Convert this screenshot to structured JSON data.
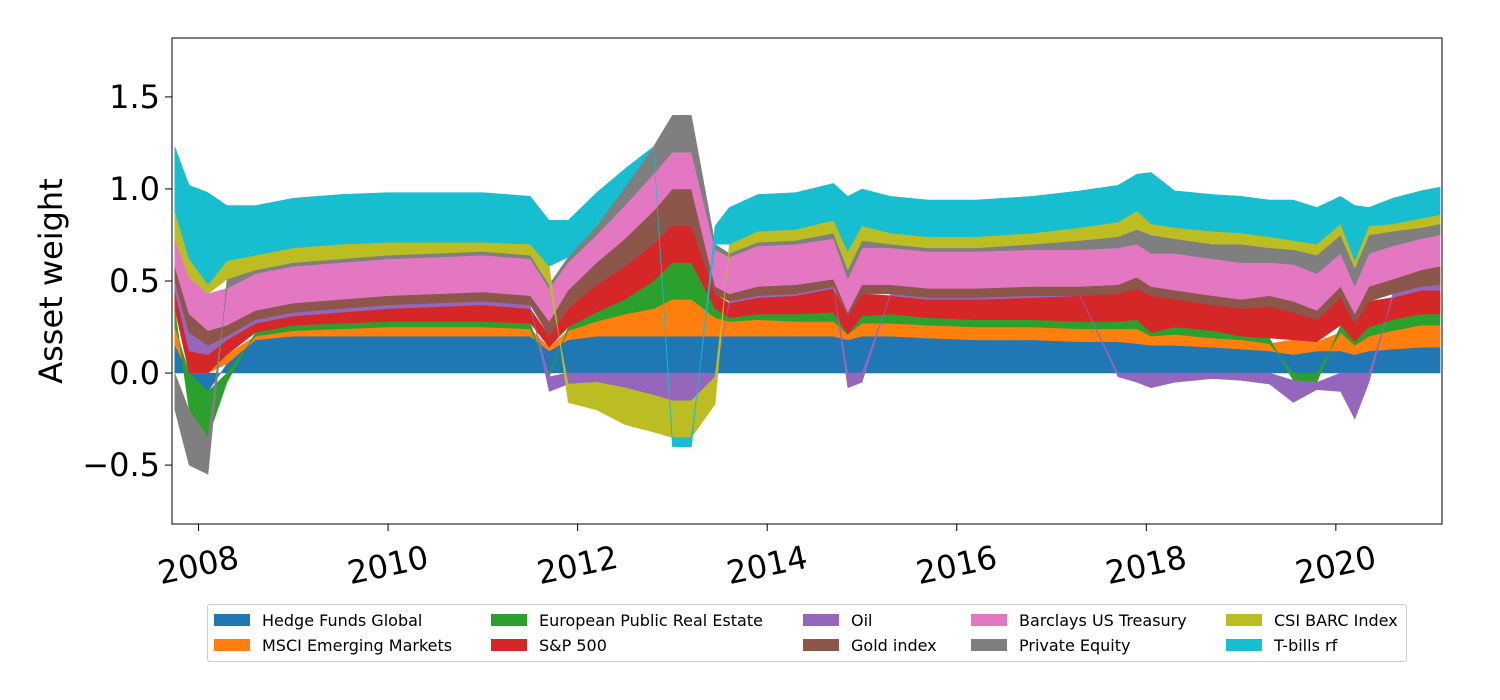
{
  "chart_data": {
    "type": "area",
    "stacked": true,
    "title": "",
    "xlabel": "",
    "ylabel": "Asset weight",
    "xlim": [
      2007.72,
      2021.12
    ],
    "ylim": [
      -0.82,
      1.82
    ],
    "xticks": [
      2008,
      2010,
      2012,
      2014,
      2016,
      2018,
      2020
    ],
    "xtick_labels": [
      "2008",
      "2010",
      "2012",
      "2014",
      "2016",
      "2018",
      "2020"
    ],
    "yticks": [
      -0.5,
      0.0,
      0.5,
      1.0,
      1.5
    ],
    "ytick_labels": [
      "−0.5",
      "0.0",
      "0.5",
      "1.0",
      "1.5"
    ],
    "grid": false,
    "legend_position": "bottom-center",
    "x": [
      2007.75,
      2007.9,
      2008.1,
      2008.3,
      2008.6,
      2009.0,
      2009.5,
      2010.0,
      2010.5,
      2011.0,
      2011.5,
      2011.7,
      2011.9,
      2012.2,
      2012.5,
      2012.8,
      2013.0,
      2013.2,
      2013.45,
      2013.6,
      2013.9,
      2014.3,
      2014.7,
      2014.85,
      2015.0,
      2015.3,
      2015.7,
      2016.2,
      2016.8,
      2017.3,
      2017.7,
      2017.9,
      2018.05,
      2018.3,
      2018.7,
      2019.0,
      2019.3,
      2019.55,
      2019.8,
      2020.05,
      2020.2,
      2020.35,
      2020.6,
      2020.9,
      2021.1
    ],
    "series": [
      {
        "name": "Hedge Funds Global",
        "color": "#1f77b4",
        "values": [
          0.15,
          0.0,
          -0.1,
          0.05,
          0.18,
          0.2,
          0.2,
          0.2,
          0.2,
          0.2,
          0.2,
          0.12,
          0.18,
          0.2,
          0.2,
          0.2,
          0.2,
          0.2,
          0.2,
          0.2,
          0.2,
          0.2,
          0.2,
          0.18,
          0.2,
          0.2,
          0.19,
          0.18,
          0.18,
          0.17,
          0.17,
          0.16,
          0.15,
          0.15,
          0.14,
          0.13,
          0.12,
          0.1,
          0.12,
          0.12,
          0.1,
          0.12,
          0.13,
          0.14,
          0.14
        ]
      },
      {
        "name": "MSCI Emerging Markets",
        "color": "#ff7f0e",
        "values": [
          0.1,
          0.0,
          0.0,
          0.05,
          0.02,
          0.03,
          0.04,
          0.05,
          0.05,
          0.05,
          0.04,
          0.02,
          0.05,
          0.08,
          0.12,
          0.15,
          0.2,
          0.2,
          0.1,
          0.08,
          0.09,
          0.08,
          0.08,
          0.03,
          0.07,
          0.07,
          0.07,
          0.07,
          0.07,
          0.07,
          0.07,
          0.08,
          0.05,
          0.06,
          0.05,
          0.05,
          0.04,
          0.08,
          0.05,
          0.1,
          0.05,
          0.08,
          0.1,
          0.12,
          0.12
        ]
      },
      {
        "name": "European Public Real Estate",
        "color": "#2ca02c",
        "values": [
          0.1,
          -0.2,
          -0.25,
          -0.05,
          0.02,
          0.03,
          0.03,
          0.03,
          0.03,
          0.03,
          0.03,
          -0.02,
          0.02,
          0.05,
          0.08,
          0.15,
          0.2,
          0.2,
          0.05,
          0.02,
          0.03,
          0.04,
          0.05,
          0.0,
          0.04,
          0.05,
          0.04,
          0.04,
          0.04,
          0.04,
          0.04,
          0.05,
          0.02,
          0.04,
          0.04,
          0.02,
          0.03,
          -0.04,
          -0.05,
          0.04,
          0.02,
          0.05,
          0.06,
          0.06,
          0.06
        ]
      },
      {
        "name": "S&P 500",
        "color": "#d62728",
        "values": [
          0.1,
          0.12,
          0.1,
          0.08,
          0.05,
          0.05,
          0.06,
          0.07,
          0.08,
          0.09,
          0.08,
          0.06,
          0.1,
          0.15,
          0.18,
          0.2,
          0.2,
          0.2,
          0.08,
          0.08,
          0.09,
          0.1,
          0.13,
          0.1,
          0.12,
          0.1,
          0.1,
          0.11,
          0.12,
          0.14,
          0.15,
          0.17,
          0.2,
          0.15,
          0.14,
          0.15,
          0.17,
          0.15,
          0.12,
          0.15,
          0.1,
          0.14,
          0.12,
          0.13,
          0.13
        ]
      },
      {
        "name": "Oil",
        "color": "#9467bd",
        "values": [
          0.05,
          0.1,
          0.05,
          0.02,
          0.02,
          0.02,
          0.02,
          0.02,
          0.02,
          0.02,
          0.02,
          -0.08,
          -0.06,
          -0.05,
          -0.08,
          -0.12,
          -0.15,
          -0.15,
          -0.02,
          0.01,
          0.01,
          0.01,
          0.01,
          -0.08,
          -0.05,
          0.01,
          0.01,
          0.01,
          0.01,
          0.0,
          -0.02,
          -0.05,
          -0.08,
          -0.05,
          -0.03,
          -0.04,
          -0.06,
          -0.12,
          -0.04,
          -0.1,
          -0.25,
          -0.05,
          0.02,
          0.02,
          0.03
        ]
      },
      {
        "name": "Gold index",
        "color": "#8c564b",
        "values": [
          0.08,
          0.1,
          0.08,
          0.06,
          0.05,
          0.05,
          0.05,
          0.05,
          0.05,
          0.05,
          0.05,
          0.08,
          0.1,
          0.12,
          0.15,
          0.18,
          0.2,
          0.2,
          0.04,
          0.04,
          0.05,
          0.05,
          0.04,
          0.02,
          0.05,
          0.05,
          0.05,
          0.05,
          0.05,
          0.05,
          0.05,
          0.06,
          0.05,
          0.05,
          0.05,
          0.05,
          0.06,
          0.06,
          0.05,
          0.06,
          0.05,
          0.08,
          0.08,
          0.09,
          0.1
        ]
      },
      {
        "name": "Barclays US Treasury",
        "color": "#e377c2",
        "values": [
          0.15,
          0.2,
          0.2,
          0.2,
          0.2,
          0.2,
          0.2,
          0.2,
          0.2,
          0.2,
          0.2,
          0.18,
          0.15,
          0.15,
          0.18,
          0.2,
          0.2,
          0.2,
          0.2,
          0.2,
          0.22,
          0.22,
          0.22,
          0.18,
          0.2,
          0.2,
          0.2,
          0.2,
          0.2,
          0.2,
          0.2,
          0.18,
          0.18,
          0.2,
          0.2,
          0.2,
          0.18,
          0.2,
          0.2,
          0.18,
          0.15,
          0.18,
          0.18,
          0.17,
          0.17
        ]
      },
      {
        "name": "Private Equity",
        "color": "#7f7f7f",
        "values": [
          -0.2,
          -0.3,
          -0.2,
          0.05,
          0.02,
          0.02,
          0.02,
          0.02,
          0.02,
          0.02,
          0.02,
          0.02,
          0.03,
          0.05,
          0.1,
          0.15,
          0.2,
          0.2,
          0.03,
          0.02,
          0.02,
          0.02,
          0.03,
          0.05,
          0.04,
          0.02,
          0.02,
          0.02,
          0.03,
          0.05,
          0.06,
          0.08,
          0.1,
          0.08,
          0.08,
          0.1,
          0.08,
          0.08,
          0.1,
          0.1,
          0.1,
          0.1,
          0.08,
          0.06,
          0.06
        ]
      },
      {
        "name": "CSI BARC Index",
        "color": "#bcbd22",
        "values": [
          0.15,
          0.1,
          0.05,
          0.1,
          0.08,
          0.08,
          0.08,
          0.07,
          0.06,
          0.05,
          0.06,
          0.1,
          -0.1,
          -0.15,
          -0.2,
          -0.2,
          -0.2,
          -0.2,
          -0.15,
          0.05,
          0.06,
          0.06,
          0.07,
          0.1,
          0.08,
          0.06,
          0.06,
          0.06,
          0.06,
          0.07,
          0.08,
          0.1,
          0.06,
          0.06,
          0.07,
          0.06,
          0.06,
          0.05,
          0.06,
          0.06,
          0.04,
          0.05,
          0.04,
          0.05,
          0.05
        ]
      },
      {
        "name": "T-bills rf",
        "color": "#17becf",
        "values": [
          0.35,
          0.4,
          0.5,
          0.3,
          0.27,
          0.27,
          0.27,
          0.27,
          0.27,
          0.27,
          0.26,
          0.25,
          0.2,
          0.18,
          0.1,
          0.0,
          -0.05,
          -0.05,
          0.1,
          0.2,
          0.2,
          0.2,
          0.2,
          0.3,
          0.2,
          0.2,
          0.2,
          0.2,
          0.2,
          0.2,
          0.2,
          0.2,
          0.28,
          0.2,
          0.2,
          0.2,
          0.2,
          0.22,
          0.2,
          0.15,
          0.3,
          0.1,
          0.14,
          0.15,
          0.15
        ]
      }
    ]
  }
}
